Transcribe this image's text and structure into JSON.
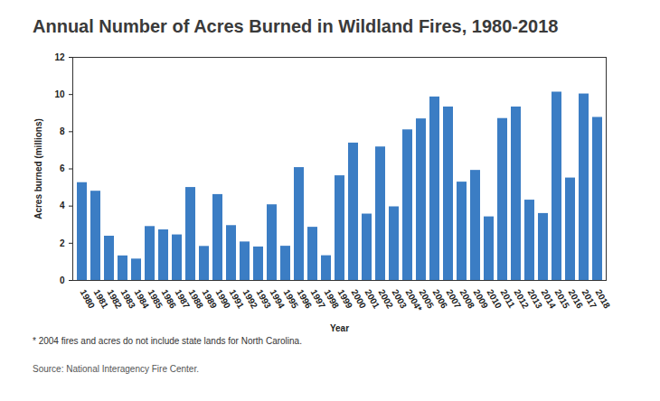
{
  "chart_data": {
    "type": "bar",
    "title": "Annual Number of Acres Burned in Wildland Fires, 1980-2018",
    "x_label": "Year",
    "y_label": "Acres burned (millions)",
    "footnote": "* 2004 fires and acres do not include state lands for North Carolina.",
    "source": "Source: National Interagency Fire Center.",
    "categories": [
      "1980",
      "1981",
      "1982",
      "1983",
      "1984",
      "1985",
      "1986",
      "1987",
      "1988",
      "1989",
      "1990",
      "1991",
      "1992",
      "1993",
      "1994",
      "1995",
      "1996",
      "1997",
      "1998",
      "1999",
      "2000",
      "2001",
      "2002",
      "2003",
      "2004*",
      "2005",
      "2006",
      "2007",
      "2008",
      "2009",
      "2010",
      "2011",
      "2012",
      "2013",
      "2014",
      "2015",
      "2016",
      "2017",
      "2018"
    ],
    "values": [
      5.26,
      4.8,
      2.38,
      1.32,
      1.15,
      2.9,
      2.72,
      2.45,
      5.0,
      1.83,
      4.62,
      2.95,
      2.07,
      1.8,
      4.07,
      1.84,
      6.07,
      2.86,
      1.33,
      5.63,
      7.39,
      3.57,
      7.18,
      3.96,
      8.1,
      8.69,
      9.87,
      9.33,
      5.29,
      5.92,
      3.42,
      8.71,
      9.33,
      4.32,
      3.6,
      10.13,
      5.51,
      10.03,
      8.77
    ],
    "color": "#3b7dc4",
    "ylim": [
      0,
      12
    ],
    "yticks": [
      0,
      2,
      4,
      6,
      8,
      10,
      12
    ],
    "grid": false
  }
}
